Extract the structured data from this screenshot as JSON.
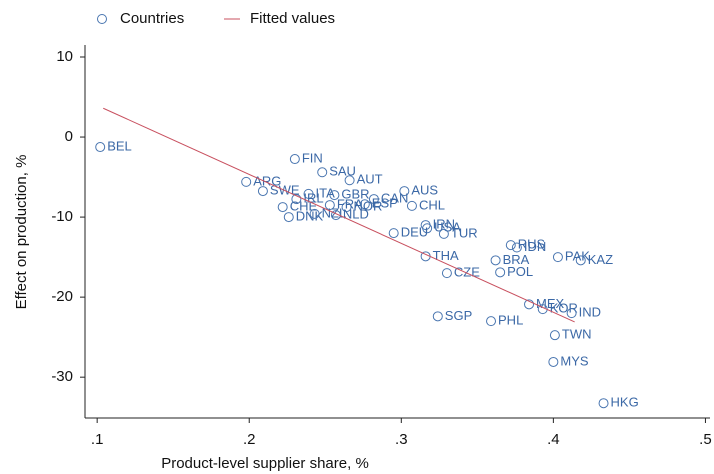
{
  "chart_data": {
    "type": "scatter",
    "x_label": "Product-level supplier share, %",
    "y_label": "Effect on production, %",
    "xlim": [
      0.092,
      0.503
    ],
    "ylim": [
      -35.1,
      11.5
    ],
    "xticks": [
      {
        "value": 0.1,
        "label": ".1"
      },
      {
        "value": 0.2,
        "label": ".2"
      },
      {
        "value": 0.3,
        "label": ".3"
      },
      {
        "value": 0.4,
        "label": ".4"
      },
      {
        "value": 0.5,
        "label": ".5"
      }
    ],
    "yticks": [
      10,
      0,
      -10,
      -20,
      -30
    ],
    "grid": false,
    "legend": "top-left",
    "series": [
      {
        "name": "Countries",
        "type": "scatter",
        "color": "#4a76b0",
        "labels": [
          "BEL",
          "FIN",
          "SAU",
          "AUT",
          "ARG",
          "AUS",
          "SWE",
          "ITA",
          "IRL",
          "GBR",
          "CAN",
          "FRA",
          "ESP",
          "NOR",
          "CHL",
          "CHE",
          "DNK",
          "NZL",
          "NLD",
          "IRN",
          "USA",
          "DEU",
          "TUR",
          "RUS",
          "IDN",
          "PAK",
          "KAZ",
          "THA",
          "BRA",
          "CZE",
          "POL",
          "MEX",
          "KOR",
          "IND",
          "SGP",
          "PHL",
          "TWN",
          "MYS",
          "HKG"
        ],
        "x": [
          0.102,
          0.23,
          0.248,
          0.266,
          0.198,
          0.302,
          0.209,
          0.239,
          0.231,
          0.256,
          0.282,
          0.253,
          0.276,
          0.264,
          0.307,
          0.222,
          0.226,
          0.243,
          0.257,
          0.316,
          0.317,
          0.295,
          0.328,
          0.372,
          0.376,
          0.403,
          0.418,
          0.316,
          0.362,
          0.33,
          0.365,
          0.384,
          0.393,
          0.412,
          0.324,
          0.359,
          0.401,
          0.4,
          0.433
        ],
        "values": [
          -1.25,
          -2.75,
          -4.4,
          -5.4,
          -5.6,
          -6.75,
          -6.75,
          -7.1,
          -7.75,
          -7.25,
          -7.75,
          -8.5,
          -8.4,
          -8.75,
          -8.6,
          -8.75,
          -10,
          -9.6,
          -9.75,
          -11,
          -11.4,
          -12,
          -12.1,
          -13.5,
          -13.8,
          -15,
          -15.4,
          -14.9,
          -15.4,
          -17,
          -16.9,
          -20.9,
          -21.5,
          -22,
          -22.4,
          -23,
          -24.75,
          -28.1,
          -33.25
        ]
      },
      {
        "name": "Fitted values",
        "type": "line",
        "color": "#c8505f",
        "x": [
          0.104,
          0.414
        ],
        "values": [
          3.6,
          -23.1
        ]
      }
    ]
  }
}
